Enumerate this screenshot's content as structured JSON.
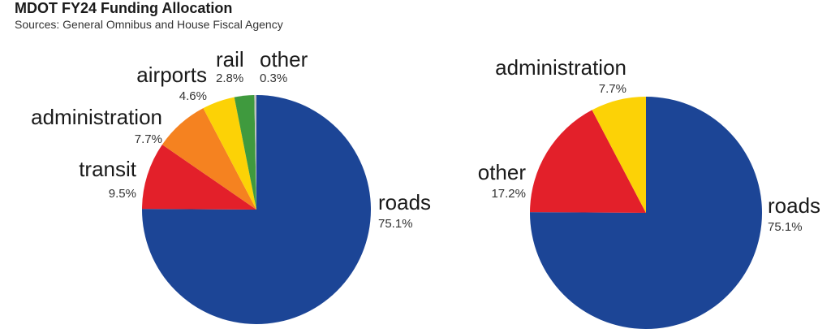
{
  "title": "MDOT FY24 Funding Allocation",
  "subtitle": "Sources: General Omnibus and House Fiscal Agency",
  "chart_data": [
    {
      "type": "pie",
      "slices": [
        {
          "label": "roads",
          "value": 75.1,
          "display": "75.1%",
          "color": "#1c4596"
        },
        {
          "label": "transit",
          "value": 9.5,
          "display": "9.5%",
          "color": "#e3202a"
        },
        {
          "label": "administration",
          "value": 7.7,
          "display": "7.7%",
          "color": "#f58220"
        },
        {
          "label": "airports",
          "value": 4.6,
          "display": "4.6%",
          "color": "#fcd206"
        },
        {
          "label": "rail",
          "value": 2.8,
          "display": "2.8%",
          "color": "#3f9a3e"
        },
        {
          "label": "other",
          "value": 0.3,
          "display": "0.3%",
          "color": "#c0c0c0"
        }
      ]
    },
    {
      "type": "pie",
      "slices": [
        {
          "label": "roads",
          "value": 75.1,
          "display": "75.1%",
          "color": "#1c4596"
        },
        {
          "label": "other",
          "value": 17.2,
          "display": "17.2%",
          "color": "#e3202a"
        },
        {
          "label": "administration",
          "value": 7.7,
          "display": "7.7%",
          "color": "#fcd206"
        }
      ]
    }
  ]
}
